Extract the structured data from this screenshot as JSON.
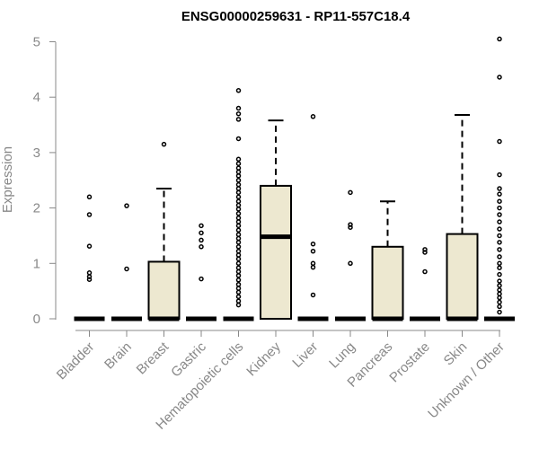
{
  "chart_data": {
    "type": "box",
    "title": "ENSG00000259631 - RP11-557C18.4",
    "ylabel": "Expression",
    "ylim": [
      0,
      5.1
    ],
    "yticks": [
      0,
      1,
      2,
      3,
      4,
      5
    ],
    "box_color": "#ede8d0",
    "categories": [
      "Bladder",
      "Brain",
      "Breast",
      "Gastric",
      "Hematopoietic cells",
      "Kidney",
      "Liver",
      "Lung",
      "Pancreas",
      "Prostate",
      "Skin",
      "Unknown / Other"
    ],
    "boxes": [
      {
        "q1": 0,
        "median": 0,
        "q3": 0,
        "whisker_low": 0,
        "whisker_high": 0,
        "outliers": [
          0.71,
          0.76,
          0.83,
          1.31,
          1.88,
          2.2
        ]
      },
      {
        "q1": 0,
        "median": 0,
        "q3": 0,
        "whisker_low": 0,
        "whisker_high": 0,
        "outliers": [
          0.9,
          2.04
        ]
      },
      {
        "q1": 0,
        "median": 0,
        "q3": 1.03,
        "whisker_low": 0,
        "whisker_high": 2.35,
        "outliers": [
          3.15
        ]
      },
      {
        "q1": 0,
        "median": 0,
        "q3": 0,
        "whisker_low": 0,
        "whisker_high": 0,
        "outliers": [
          0.72,
          1.3,
          1.42,
          1.55,
          1.68
        ]
      },
      {
        "q1": 0,
        "median": 0,
        "q3": 0,
        "whisker_low": 0,
        "whisker_high": 0,
        "outliers": [
          0.25,
          0.32,
          0.4,
          0.48,
          0.55,
          0.62,
          0.7,
          0.78,
          0.85,
          0.92,
          1.0,
          1.08,
          1.15,
          1.22,
          1.3,
          1.38,
          1.45,
          1.52,
          1.6,
          1.68,
          1.75,
          1.82,
          1.9,
          1.98,
          2.05,
          2.12,
          2.2,
          2.28,
          2.35,
          2.42,
          2.5,
          2.58,
          2.65,
          2.72,
          2.8,
          2.88,
          3.25,
          3.6,
          3.7,
          3.8,
          4.12
        ]
      },
      {
        "q1": 0,
        "median": 1.48,
        "q3": 2.4,
        "whisker_low": 0,
        "whisker_high": 3.58,
        "outliers": []
      },
      {
        "q1": 0,
        "median": 0,
        "q3": 0,
        "whisker_low": 0,
        "whisker_high": 0,
        "outliers": [
          0.43,
          0.93,
          1.0,
          1.22,
          1.35,
          3.65
        ]
      },
      {
        "q1": 0,
        "median": 0,
        "q3": 0,
        "whisker_low": 0,
        "whisker_high": 0,
        "outliers": [
          1.0,
          1.65,
          1.7,
          2.28
        ]
      },
      {
        "q1": 0,
        "median": 0,
        "q3": 1.3,
        "whisker_low": 0,
        "whisker_high": 2.12,
        "outliers": []
      },
      {
        "q1": 0,
        "median": 0,
        "q3": 0,
        "whisker_low": 0,
        "whisker_high": 0,
        "outliers": [
          0.85,
          1.2,
          1.25
        ]
      },
      {
        "q1": 0,
        "median": 0,
        "q3": 1.53,
        "whisker_low": 0,
        "whisker_high": 3.68,
        "outliers": []
      },
      {
        "q1": 0,
        "median": 0,
        "q3": 0,
        "whisker_low": 0,
        "whisker_high": 0,
        "outliers": [
          0.12,
          0.22,
          0.3,
          0.38,
          0.45,
          0.52,
          0.6,
          0.68,
          0.8,
          0.92,
          1.0,
          1.12,
          1.25,
          1.38,
          1.5,
          1.62,
          1.75,
          1.88,
          2.0,
          2.12,
          2.25,
          2.35,
          2.6,
          3.2,
          4.36,
          5.05
        ]
      }
    ]
  }
}
